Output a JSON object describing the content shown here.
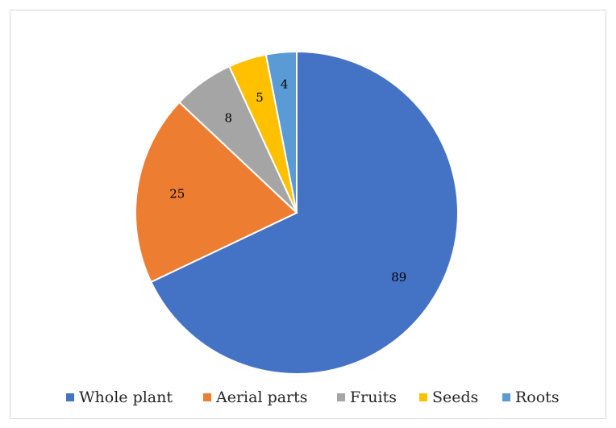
{
  "chart_data": {
    "type": "pie",
    "categories": [
      "Whole plant",
      "Aerial parts",
      "Fruits",
      "Seeds",
      "Roots"
    ],
    "values": [
      89,
      25,
      8,
      5,
      4
    ],
    "colors": [
      "#4472c4",
      "#ed7d31",
      "#a5a5a5",
      "#ffc000",
      "#5b9bd5"
    ],
    "data_labels": [
      "89",
      "25",
      "8",
      "5",
      "4"
    ],
    "legend": "bottom",
    "start_angle": "12 o'clock",
    "direction": "clockwise"
  }
}
